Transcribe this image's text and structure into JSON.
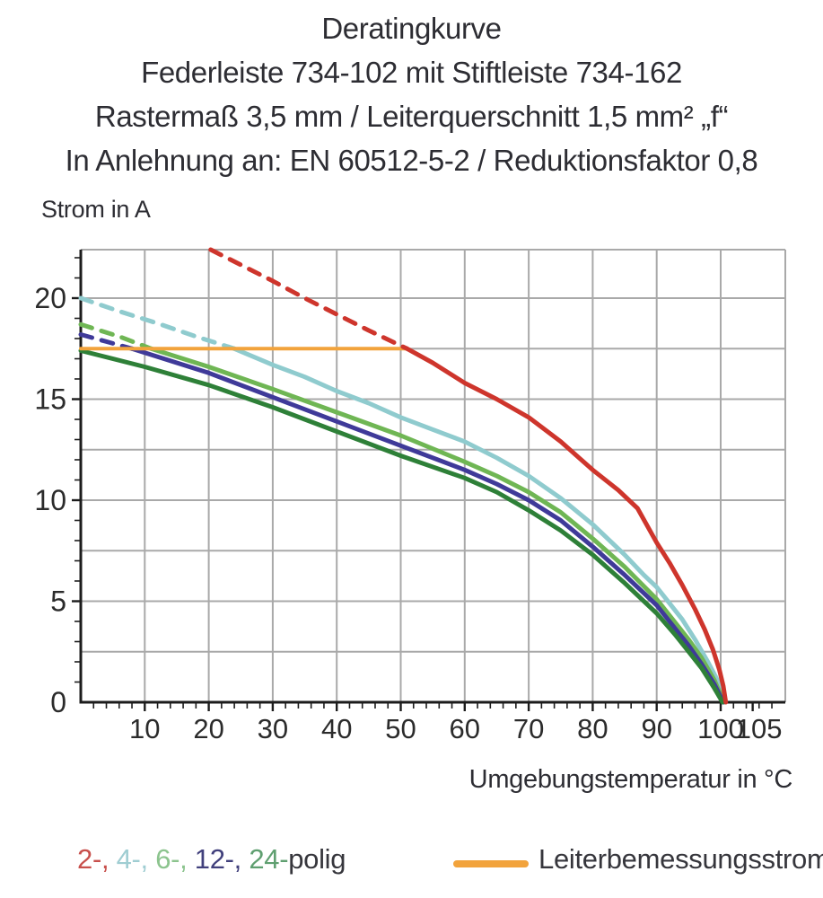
{
  "title": {
    "line1": "Deratingkurve",
    "line2": "Federleiste 734-102 mit Stiftleiste 734-162",
    "line3": "Rastermaß 3,5 mm / Leiterquerschnitt 1,5 mm² „f“",
    "line4": "In Anlehnung an: EN 60512-5-2 / Reduktionsfaktor 0,8"
  },
  "axes": {
    "y_label": "Strom in A",
    "x_label": "Umgebungstemperatur in °C"
  },
  "legend": {
    "poles_parts": [
      {
        "text": "2-, ",
        "color": "#c8504c"
      },
      {
        "text": "4-, ",
        "color": "#9fcdd2"
      },
      {
        "text": "6-, ",
        "color": "#8cc48e"
      },
      {
        "text": "12-, ",
        "color": "#41407c"
      },
      {
        "text": "24-",
        "color": "#5f9f70"
      },
      {
        "text": "polig",
        "color": "#36363c"
      }
    ],
    "rated_current_label": "Leiterbemessungsstrom",
    "rated_current_color": "#f2a33c"
  },
  "colors": {
    "grid": "#a9a9a9",
    "axis": "#1c1c1c",
    "tick_label": "#2b2b2b"
  },
  "chart_data": {
    "type": "line",
    "title": "Deratingkurve",
    "xlabel": "Umgebungstemperatur in °C",
    "ylabel": "Strom in A",
    "xlim": [
      0,
      110
    ],
    "ylim": [
      0,
      22.4
    ],
    "x_tick_labels": [
      10,
      20,
      30,
      40,
      50,
      60,
      70,
      80,
      90,
      100,
      105
    ],
    "y_tick_labels": [
      0,
      5,
      10,
      15,
      20
    ],
    "x_grid_step": 10,
    "y_grid_step": 2.5,
    "grid": true,
    "rated_current_A": 17.5,
    "note": "dashed = portion above Leiterbemessungsstrom (17.5 A); x in °C, y in A",
    "series": [
      {
        "name": "2-polig",
        "color": "#ce352c",
        "dashed": [
          [
            20.3,
            22.4
          ],
          [
            25,
            21.65
          ],
          [
            30,
            20.85
          ],
          [
            35,
            20.0
          ],
          [
            40,
            19.2
          ],
          [
            45,
            18.4
          ],
          [
            51,
            17.5
          ]
        ],
        "solid": [
          [
            51,
            17.5
          ],
          [
            55,
            16.8
          ],
          [
            60,
            15.8
          ],
          [
            65,
            15.0
          ],
          [
            70,
            14.1
          ],
          [
            75,
            12.9
          ],
          [
            80,
            11.5
          ],
          [
            84,
            10.5
          ],
          [
            87,
            9.6
          ],
          [
            90,
            7.9
          ],
          [
            92,
            6.9
          ],
          [
            94,
            5.8
          ],
          [
            96,
            4.6
          ],
          [
            97.5,
            3.6
          ],
          [
            98.8,
            2.6
          ],
          [
            99.8,
            1.6
          ],
          [
            100.4,
            0.8
          ],
          [
            100.8,
            0
          ]
        ]
      },
      {
        "name": "4-polig",
        "color": "#8fcbce",
        "dashed": [
          [
            0,
            20.0
          ],
          [
            6,
            19.35
          ],
          [
            12,
            18.75
          ],
          [
            18,
            18.1
          ],
          [
            24,
            17.5
          ]
        ],
        "solid": [
          [
            24,
            17.5
          ],
          [
            30,
            16.7
          ],
          [
            35,
            16.1
          ],
          [
            40,
            15.4
          ],
          [
            45,
            14.8
          ],
          [
            50,
            14.1
          ],
          [
            55,
            13.5
          ],
          [
            60,
            12.9
          ],
          [
            65,
            12.1
          ],
          [
            70,
            11.2
          ],
          [
            75,
            10.1
          ],
          [
            80,
            8.8
          ],
          [
            85,
            7.3
          ],
          [
            88,
            6.3
          ],
          [
            90,
            5.7
          ],
          [
            92,
            4.9
          ],
          [
            94,
            4.1
          ],
          [
            96,
            3.1
          ],
          [
            98,
            2.0
          ],
          [
            99.5,
            1.1
          ],
          [
            100.6,
            0
          ]
        ]
      },
      {
        "name": "6-polig",
        "color": "#6fb654",
        "dashed": [
          [
            0,
            18.7
          ],
          [
            6,
            18.1
          ],
          [
            11,
            17.5
          ]
        ],
        "solid": [
          [
            11,
            17.5
          ],
          [
            20,
            16.6
          ],
          [
            30,
            15.5
          ],
          [
            40,
            14.35
          ],
          [
            50,
            13.2
          ],
          [
            60,
            11.9
          ],
          [
            65,
            11.2
          ],
          [
            70,
            10.4
          ],
          [
            75,
            9.4
          ],
          [
            80,
            8.1
          ],
          [
            85,
            6.7
          ],
          [
            90,
            5.1
          ],
          [
            93,
            3.9
          ],
          [
            95,
            3.1
          ],
          [
            97,
            2.2
          ],
          [
            99,
            1.1
          ],
          [
            100.5,
            0
          ]
        ]
      },
      {
        "name": "12-polig",
        "color": "#3f3a99",
        "dashed": [
          [
            0,
            18.2
          ],
          [
            4,
            17.85
          ],
          [
            8,
            17.5
          ]
        ],
        "solid": [
          [
            8,
            17.5
          ],
          [
            20,
            16.3
          ],
          [
            30,
            15.1
          ],
          [
            40,
            13.9
          ],
          [
            50,
            12.7
          ],
          [
            60,
            11.5
          ],
          [
            65,
            10.8
          ],
          [
            70,
            10.0
          ],
          [
            75,
            9.0
          ],
          [
            80,
            7.7
          ],
          [
            85,
            6.3
          ],
          [
            90,
            4.8
          ],
          [
            93,
            3.6
          ],
          [
            95,
            2.8
          ],
          [
            97,
            1.9
          ],
          [
            99,
            0.9
          ],
          [
            100.4,
            0
          ]
        ]
      },
      {
        "name": "24-polig",
        "color": "#2e8038",
        "dashed": [],
        "solid": [
          [
            0,
            17.4
          ],
          [
            10,
            16.6
          ],
          [
            20,
            15.7
          ],
          [
            30,
            14.6
          ],
          [
            40,
            13.4
          ],
          [
            50,
            12.2
          ],
          [
            60,
            11.1
          ],
          [
            65,
            10.4
          ],
          [
            70,
            9.5
          ],
          [
            75,
            8.5
          ],
          [
            80,
            7.3
          ],
          [
            85,
            5.9
          ],
          [
            90,
            4.4
          ],
          [
            93,
            3.3
          ],
          [
            95,
            2.5
          ],
          [
            97,
            1.7
          ],
          [
            99,
            0.7
          ],
          [
            100.3,
            0
          ]
        ]
      },
      {
        "name": "Leiterbemessungsstrom",
        "color": "#f2a33c",
        "dashed": [],
        "solid": [
          [
            0,
            17.5
          ],
          [
            51,
            17.5
          ]
        ]
      }
    ]
  }
}
